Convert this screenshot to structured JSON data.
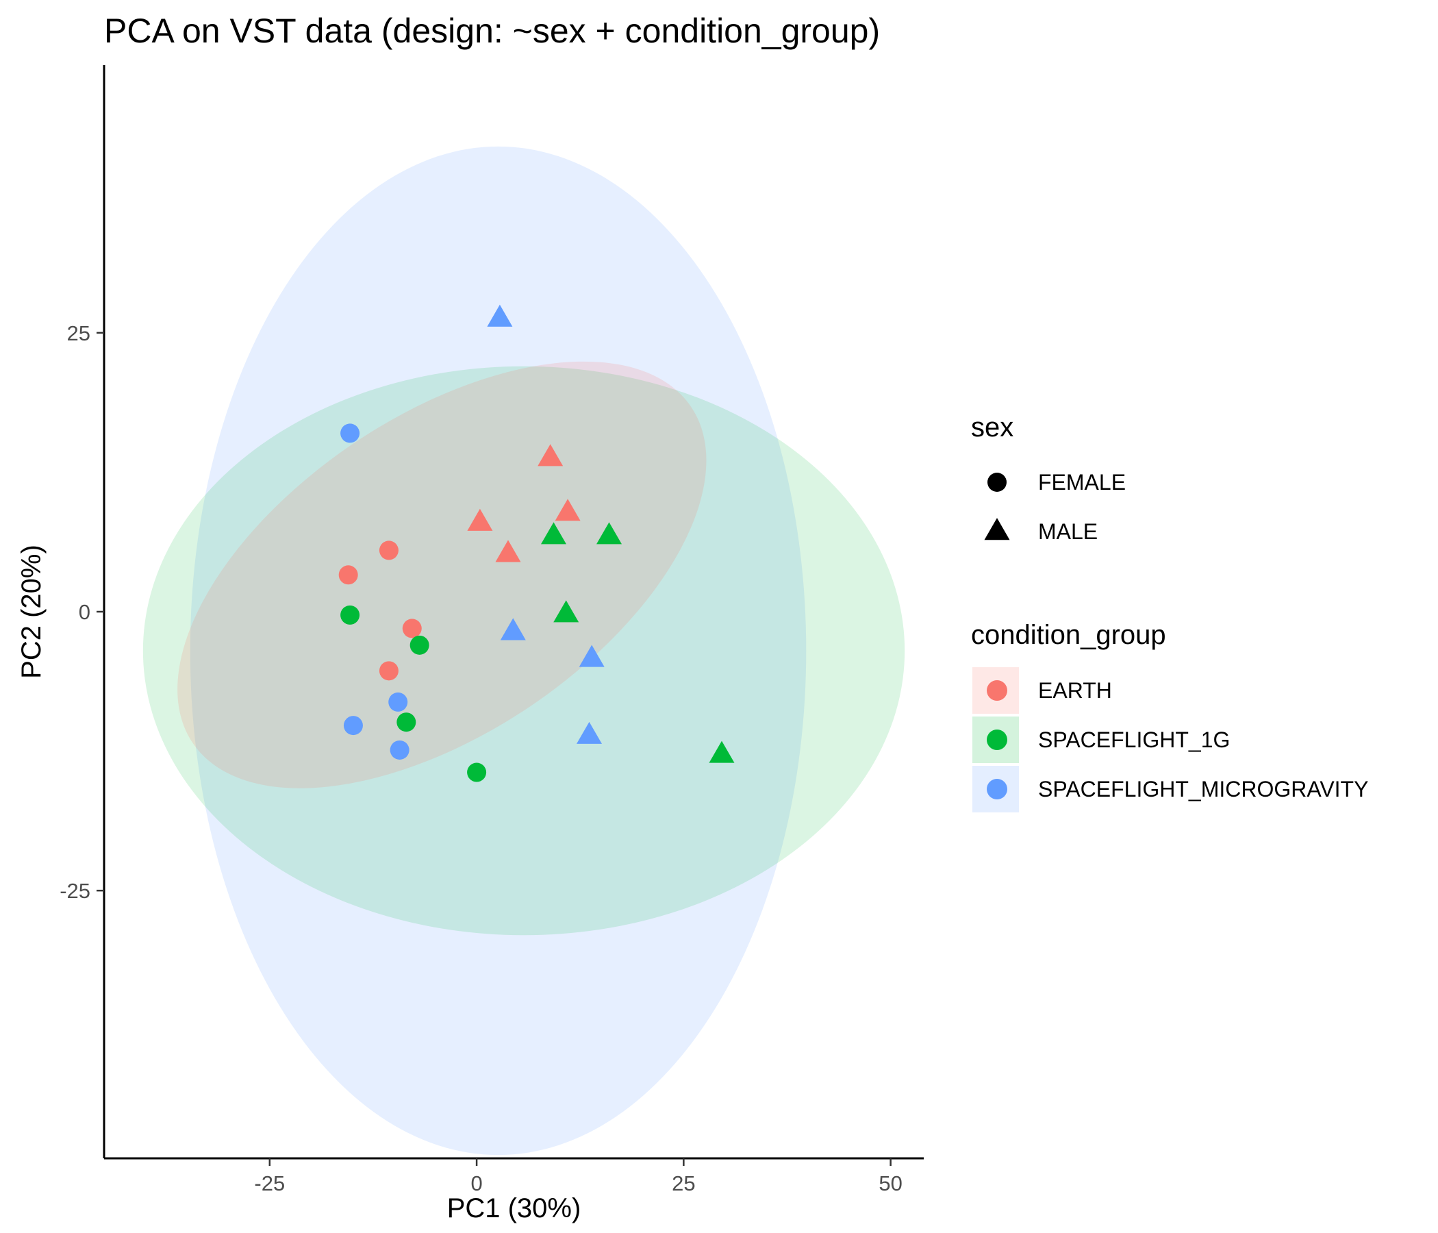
{
  "chart_data": {
    "type": "scatter",
    "title": "PCA on VST data (design: ~sex + condition_group)",
    "xlabel": "PC1 (30%)",
    "ylabel": "PC2 (20%)",
    "xlim": [
      -45,
      54
    ],
    "ylim": [
      -49,
      49
    ],
    "x_ticks": [
      -25,
      0,
      25,
      50
    ],
    "y_ticks": [
      -25,
      0,
      25
    ],
    "x_tick_labels": [
      "-25",
      "0",
      "25",
      "50"
    ],
    "y_tick_labels": [
      "-25",
      "0",
      "25"
    ],
    "grid": false,
    "legend_placement": "right",
    "shape_legend": {
      "title": "sex",
      "entries": [
        {
          "label": "FEMALE",
          "shape": "circle"
        },
        {
          "label": "MALE",
          "shape": "triangle"
        }
      ]
    },
    "color_legend": {
      "title": "condition_group",
      "entries": [
        {
          "label": "EARTH",
          "color": "#F8766D"
        },
        {
          "label": "SPACEFLIGHT_1G",
          "color": "#00BA38"
        },
        {
          "label": "SPACEFLIGHT_MICROGRAVITY",
          "color": "#619CFF"
        }
      ]
    },
    "ellipses": [
      {
        "group": "SPACEFLIGHT_MICROGRAVITY",
        "center": [
          2.6,
          -3.5
        ],
        "rx": 37.2,
        "ry": 45.2,
        "angle_deg": 0,
        "fill": "#619CFF",
        "opacity": 0.16
      },
      {
        "group": "SPACEFLIGHT_1G",
        "center": [
          5.7,
          -3.5
        ],
        "rx": 46,
        "ry": 25.5,
        "angle_deg": 0,
        "fill": "#00BA38",
        "opacity": 0.14
      },
      {
        "group": "EARTH",
        "center": [
          -4.2,
          3.3
        ],
        "rx": 36.3,
        "ry": 14.2,
        "angle_deg": -34,
        "fill": "#F8766D",
        "opacity": 0.17
      }
    ],
    "points": [
      {
        "x": -15.5,
        "y": 3.3,
        "group": "EARTH",
        "sex": "FEMALE"
      },
      {
        "x": -10.6,
        "y": 5.5,
        "group": "EARTH",
        "sex": "FEMALE"
      },
      {
        "x": -7.8,
        "y": -1.5,
        "group": "EARTH",
        "sex": "FEMALE"
      },
      {
        "x": -10.6,
        "y": -5.3,
        "group": "EARTH",
        "sex": "FEMALE"
      },
      {
        "x": 0.4,
        "y": 8.0,
        "group": "EARTH",
        "sex": "MALE"
      },
      {
        "x": 3.8,
        "y": 5.2,
        "group": "EARTH",
        "sex": "MALE"
      },
      {
        "x": 8.9,
        "y": 13.8,
        "group": "EARTH",
        "sex": "MALE"
      },
      {
        "x": 11.0,
        "y": 8.9,
        "group": "EARTH",
        "sex": "MALE"
      },
      {
        "x": -15.3,
        "y": -0.3,
        "group": "SPACEFLIGHT_1G",
        "sex": "FEMALE"
      },
      {
        "x": -6.9,
        "y": -3.0,
        "group": "SPACEFLIGHT_1G",
        "sex": "FEMALE"
      },
      {
        "x": -8.5,
        "y": -9.9,
        "group": "SPACEFLIGHT_1G",
        "sex": "FEMALE"
      },
      {
        "x": 0.0,
        "y": -14.4,
        "group": "SPACEFLIGHT_1G",
        "sex": "FEMALE"
      },
      {
        "x": 9.3,
        "y": 6.8,
        "group": "SPACEFLIGHT_1G",
        "sex": "MALE"
      },
      {
        "x": 16.0,
        "y": 6.8,
        "group": "SPACEFLIGHT_1G",
        "sex": "MALE"
      },
      {
        "x": 10.8,
        "y": -0.2,
        "group": "SPACEFLIGHT_1G",
        "sex": "MALE"
      },
      {
        "x": 29.6,
        "y": -12.8,
        "group": "SPACEFLIGHT_1G",
        "sex": "MALE"
      },
      {
        "x": -15.3,
        "y": 16.0,
        "group": "SPACEFLIGHT_MICROGRAVITY",
        "sex": "FEMALE"
      },
      {
        "x": -9.5,
        "y": -8.1,
        "group": "SPACEFLIGHT_MICROGRAVITY",
        "sex": "FEMALE"
      },
      {
        "x": -14.9,
        "y": -10.2,
        "group": "SPACEFLIGHT_MICROGRAVITY",
        "sex": "FEMALE"
      },
      {
        "x": -9.3,
        "y": -12.4,
        "group": "SPACEFLIGHT_MICROGRAVITY",
        "sex": "FEMALE"
      },
      {
        "x": 2.8,
        "y": 26.3,
        "group": "SPACEFLIGHT_MICROGRAVITY",
        "sex": "MALE"
      },
      {
        "x": 4.4,
        "y": -1.8,
        "group": "SPACEFLIGHT_MICROGRAVITY",
        "sex": "MALE"
      },
      {
        "x": 13.9,
        "y": -4.2,
        "group": "SPACEFLIGHT_MICROGRAVITY",
        "sex": "MALE"
      },
      {
        "x": 13.6,
        "y": -11.1,
        "group": "SPACEFLIGHT_MICROGRAVITY",
        "sex": "MALE"
      }
    ]
  }
}
